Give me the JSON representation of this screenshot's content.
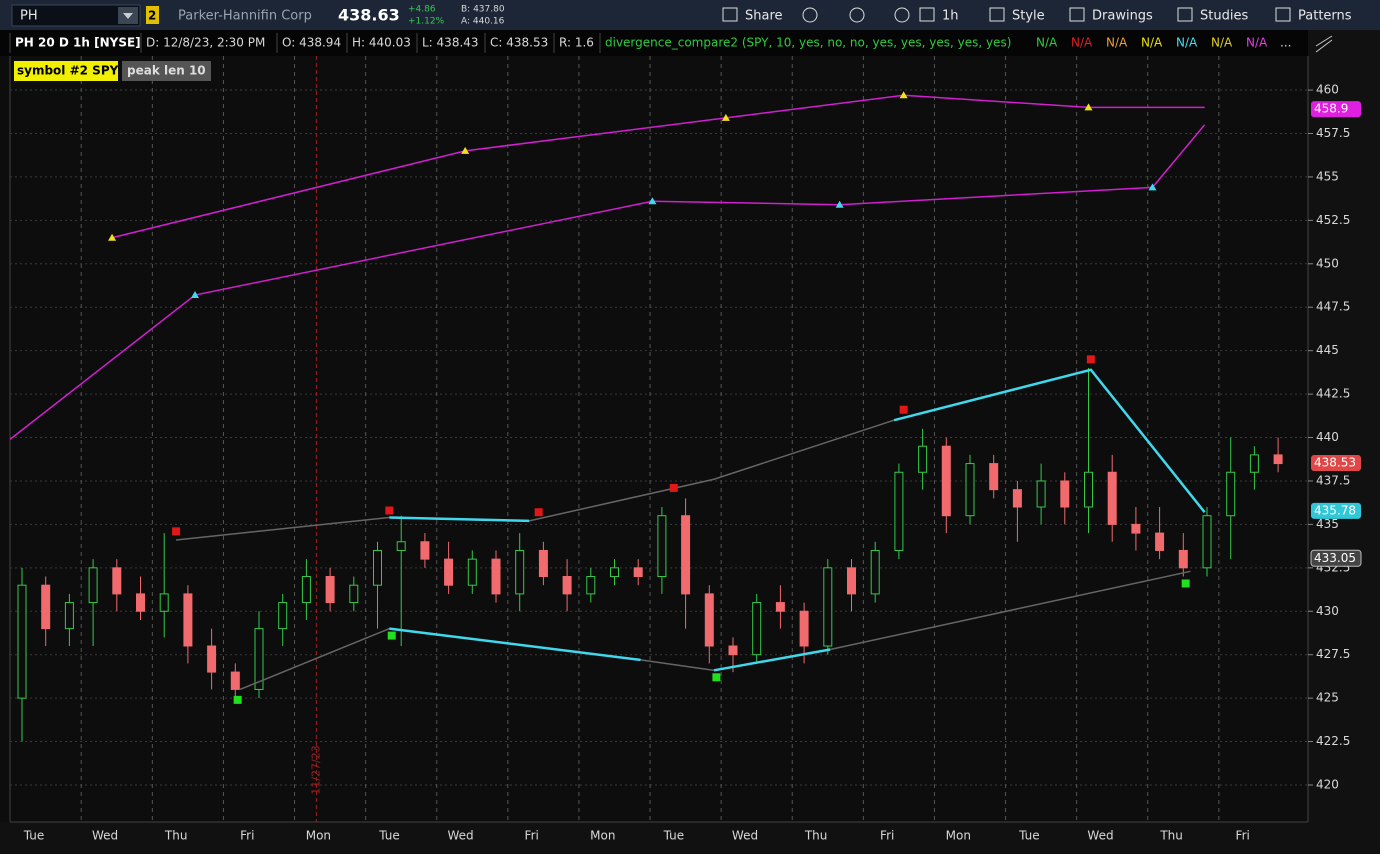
{
  "toolbar": {
    "symbol": "PH",
    "link": "2",
    "company": "Parker-Hannifin Corp",
    "last": "438.63",
    "change": "+4.86",
    "change_pct": "+1.12%",
    "bid": "B: 437.80",
    "ask": "A: 440.16",
    "buttons": [
      "Share",
      "1h",
      "Style",
      "Drawings",
      "Studies",
      "Patterns"
    ]
  },
  "header": {
    "chart": "PH 20 D 1h [NYSE]",
    "date": "D: 12/8/23, 2:30 PM",
    "open": "O: 438.94",
    "high": "H: 440.03",
    "low": "L: 438.43",
    "close": "C: 438.53",
    "range": "R: 1.6",
    "study": "divergence_compare2 (SPY, 10, yes, no, no, yes, yes, yes, yes, yes)",
    "outputs": [
      {
        "text": "N/A",
        "color": "#2ecc40"
      },
      {
        "text": "N/A",
        "color": "#e02020"
      },
      {
        "text": "N/A",
        "color": "#f0a030"
      },
      {
        "text": "N/A",
        "color": "#e8e000"
      },
      {
        "text": "N/A",
        "color": "#40e0f0"
      },
      {
        "text": "N/A",
        "color": "#e0d020"
      },
      {
        "text": "N/A",
        "color": "#e040e0"
      }
    ],
    "more": "...",
    "labels": [
      "symbol #2 SPY",
      "peak len 10"
    ]
  },
  "chart_data": {
    "type": "candlestick",
    "categories": [
      "Tue",
      null,
      null,
      "Wed",
      null,
      null,
      "Thu",
      null,
      null,
      "Fri",
      null,
      null,
      "Mon",
      null,
      null,
      "Tue",
      null,
      null,
      "Wed",
      null,
      null,
      "Fri",
      null,
      null,
      "Mon",
      null,
      null,
      "Tue",
      null,
      null,
      "Wed",
      null,
      null,
      "Thu",
      null,
      null,
      "Fri",
      null,
      null,
      "Mon",
      null,
      null,
      "Tue",
      null,
      null,
      "Wed",
      null,
      null,
      "Thu",
      null,
      null,
      "Fri",
      null,
      null
    ],
    "open": [
      425,
      431.5,
      429,
      430.5,
      432.5,
      431,
      430,
      431,
      428,
      426.5,
      425.5,
      429,
      430.5,
      432,
      430.5,
      431.5,
      433.5,
      434,
      433,
      431.5,
      433,
      431,
      433.5,
      432,
      431,
      432,
      432.5,
      432,
      435.5,
      431,
      428,
      427.5,
      430.5,
      430,
      428,
      432.5,
      431,
      433.5,
      438,
      439.5,
      435.5,
      438.5,
      437,
      436,
      437.5,
      436,
      438,
      435,
      434.5,
      433.5,
      432.5,
      435.5,
      438,
      439
    ],
    "high": [
      432.5,
      432,
      431,
      433,
      433,
      432,
      434.5,
      431.5,
      429,
      427,
      430,
      431,
      433,
      432.5,
      432,
      434,
      435.5,
      434.5,
      434,
      433.5,
      433.5,
      434.5,
      434,
      433,
      432.5,
      433,
      433,
      436,
      436.5,
      431.5,
      428.5,
      431,
      431.5,
      430.5,
      433,
      433,
      434,
      438.5,
      440.5,
      440,
      439,
      439,
      437.5,
      438.5,
      438,
      444,
      439,
      436,
      436,
      434.5,
      436,
      440,
      439.5,
      440
    ],
    "low": [
      422.5,
      428,
      428,
      428,
      430,
      429.5,
      428.5,
      427,
      425.5,
      424.8,
      425,
      428,
      429.5,
      430,
      430,
      429,
      428,
      432.5,
      431,
      431,
      430.5,
      430,
      431.5,
      430,
      430.5,
      431.5,
      431.5,
      431,
      429,
      427,
      426.5,
      427,
      429,
      427,
      427.5,
      430,
      430.5,
      433,
      437,
      434.5,
      435,
      436.5,
      434,
      435,
      435,
      434.5,
      434,
      433.5,
      433,
      432,
      432,
      433,
      437,
      438
    ],
    "close": [
      431.5,
      429,
      430.5,
      432.5,
      431,
      430,
      431,
      428,
      426.5,
      425.5,
      429,
      430.5,
      432,
      430.5,
      431.5,
      433.5,
      434,
      433,
      431.5,
      433,
      431,
      433.5,
      432,
      431,
      432,
      432.5,
      432,
      435.5,
      431,
      428,
      427.5,
      430.5,
      430,
      428,
      432.5,
      431,
      433.5,
      438,
      439.5,
      435.5,
      438.5,
      437,
      436,
      437.5,
      436,
      438,
      435,
      434.5,
      433.5,
      432.5,
      435.5,
      438,
      439,
      438.5
    ],
    "up_color": "#35c94a",
    "down_color": "#f06a6e",
    "ylim": [
      417.87,
      461.96
    ],
    "yticks": [
      420,
      422.5,
      425,
      427.5,
      430,
      432.5,
      435,
      437.5,
      440,
      442.5,
      445,
      447.5,
      450,
      452.5,
      455,
      457.5,
      460
    ],
    "grid": true,
    "event": {
      "index": 12,
      "label": "11/27/23"
    },
    "lines": [
      {
        "color": "#d020d0",
        "x": [
          3.8,
          18.7,
          29.7,
          37.2,
          45,
          49.9
        ],
        "values": [
          451.5,
          456.5,
          458.4,
          459.7,
          459,
          459
        ]
      },
      {
        "color": "#d020d0",
        "x": [
          -0.5,
          7.3,
          26.6,
          34.5,
          47.7,
          49.9
        ],
        "values": [
          439.9,
          448.2,
          453.6,
          453.4,
          454.4,
          458
        ]
      },
      {
        "color": "#666666",
        "x": [
          6.5,
          15.5,
          21.4,
          29.2,
          36.8,
          45.1
        ],
        "values": [
          434.1,
          435.4,
          435.2,
          437.6,
          441,
          443.9
        ]
      },
      {
        "color": "#666666",
        "x": [
          9.2,
          15.5,
          26.1,
          29.2,
          34.1,
          49.3
        ],
        "values": [
          425.5,
          429,
          427.2,
          426.6,
          427.8,
          432.3
        ]
      },
      {
        "color": "#40d8ec",
        "x": [
          15.5,
          21.4
        ],
        "values": [
          435.4,
          435.2
        ]
      },
      {
        "color": "#40d8ec",
        "x": [
          36.8,
          45.1,
          49.9
        ],
        "values": [
          441,
          443.9,
          435.7
        ]
      },
      {
        "color": "#40d8ec",
        "x": [
          15.5,
          26.1
        ],
        "values": [
          429,
          427.2
        ]
      },
      {
        "color": "#40d8ec",
        "x": [
          29.2,
          34.1
        ],
        "values": [
          426.6,
          427.8
        ]
      }
    ],
    "markers": [
      {
        "shape": "triangle",
        "color": "#f0e020",
        "x": [
          3.8,
          18.7,
          29.7,
          37.2,
          45
        ],
        "values": [
          451.5,
          456.5,
          458.4,
          459.7,
          459
        ]
      },
      {
        "shape": "triangle",
        "color": "#40d8ec",
        "x": [
          7.3,
          26.6,
          34.5,
          47.7
        ],
        "values": [
          448.2,
          453.6,
          453.4,
          454.4
        ]
      },
      {
        "shape": "square",
        "color": "#e01818",
        "x": [
          6.5,
          15.5,
          21.8,
          27.5,
          37.2,
          45.1
        ],
        "values": [
          434.6,
          435.8,
          435.7,
          437.1,
          441.6,
          444.5
        ]
      },
      {
        "shape": "square",
        "color": "#20e020",
        "x": [
          9.1,
          15.6,
          29.3,
          49.1
        ],
        "values": [
          424.9,
          428.6,
          426.2,
          431.6
        ]
      }
    ],
    "price_labels": [
      {
        "value": 458.9,
        "color": "#e020e0"
      },
      {
        "value": 438.53,
        "color": "#e04848"
      },
      {
        "value": 435.78,
        "color": "#30c8d8"
      },
      {
        "value": 433.05,
        "color": "#444444"
      }
    ]
  }
}
